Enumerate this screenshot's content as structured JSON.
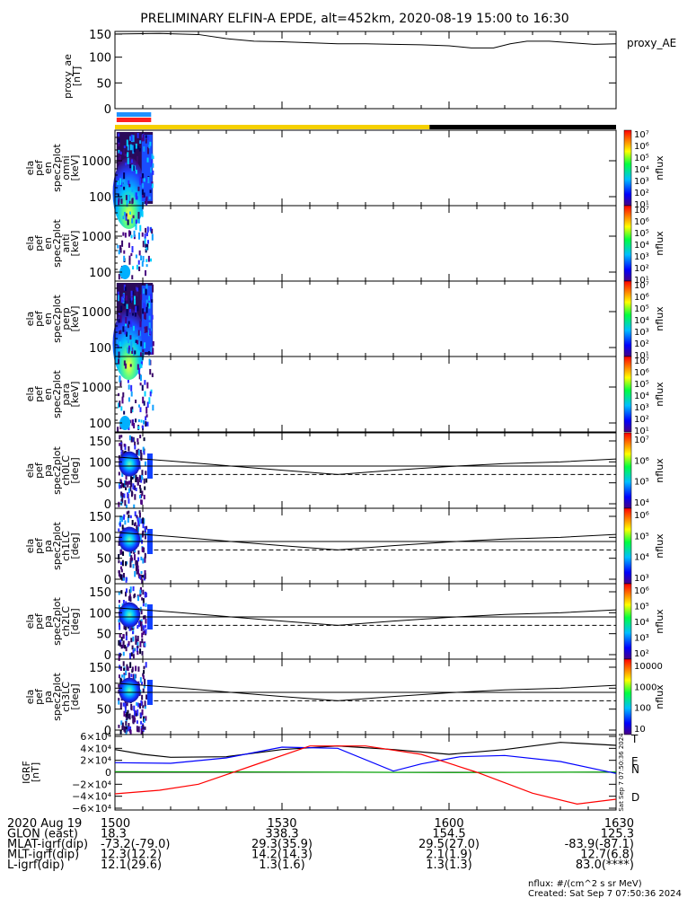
{
  "title": "PRELIMINARY ELFIN-A EPDE, alt=452km, 2020-08-19 15:00 to 16:30",
  "chart_data": {
    "type": "multi-panel",
    "x_range": [
      "15:00",
      "16:30"
    ],
    "x_ticks": [
      "1500",
      "1530",
      "1600",
      "1630"
    ],
    "ae_panel": {
      "ylabel": "proxy_ae [nT]",
      "yticks": [
        "150",
        "100",
        "50",
        "0"
      ],
      "ylim": [
        0,
        150
      ],
      "legend": "proxy_AE",
      "series": [
        {
          "t": 0,
          "v": 145
        },
        {
          "t": 8,
          "v": 146
        },
        {
          "t": 15,
          "v": 144
        },
        {
          "t": 20,
          "v": 136
        },
        {
          "t": 25,
          "v": 131
        },
        {
          "t": 30,
          "v": 130
        },
        {
          "t": 35,
          "v": 128
        },
        {
          "t": 40,
          "v": 126
        },
        {
          "t": 45,
          "v": 126
        },
        {
          "t": 50,
          "v": 125
        },
        {
          "t": 55,
          "v": 124
        },
        {
          "t": 60,
          "v": 122
        },
        {
          "t": 64,
          "v": 118
        },
        {
          "t": 68,
          "v": 118
        },
        {
          "t": 71,
          "v": 126
        },
        {
          "t": 74,
          "v": 131
        },
        {
          "t": 78,
          "v": 131
        },
        {
          "t": 82,
          "v": 128
        },
        {
          "t": 86,
          "v": 125
        },
        {
          "t": 90,
          "v": 126
        }
      ]
    },
    "status_bars": [
      {
        "color": "#1e90ff",
        "from": 0.3,
        "to": 6.5,
        "row": 0
      },
      {
        "color": "#ff2020",
        "from": 0.3,
        "to": 6.5,
        "row": 1
      },
      {
        "color": "#f5d000",
        "from": 0.0,
        "to": 56.5,
        "row": 2
      },
      {
        "color": "#000000",
        "from": 56.5,
        "to": 90.0,
        "row": 2
      }
    ],
    "energy_panels": [
      {
        "ylabel": [
          "ela",
          "pef",
          "en",
          "spec2plot",
          "omni",
          "[keV]"
        ],
        "yticks": [
          "1000",
          "100"
        ],
        "cb_label": "nflux",
        "cb_ticks": [
          "10⁷",
          "10⁶",
          "10⁵",
          "10⁴",
          "10³",
          "10²",
          "10¹"
        ],
        "density": "full"
      },
      {
        "ylabel": [
          "ela",
          "pef",
          "en",
          "spec2plot",
          "anti",
          "[keV]"
        ],
        "yticks": [
          "1000",
          "100"
        ],
        "cb_label": "nflux",
        "cb_ticks": [
          "10⁷",
          "10⁶",
          "10⁵",
          "10⁴",
          "10³",
          "10²",
          "10¹"
        ],
        "density": "sparse"
      },
      {
        "ylabel": [
          "ela",
          "pef",
          "en",
          "spec2plot",
          "perp",
          "[keV]"
        ],
        "yticks": [
          "1000",
          "100"
        ],
        "cb_label": "nflux",
        "cb_ticks": [
          "10⁷",
          "10⁶",
          "10⁵",
          "10⁴",
          "10³",
          "10²",
          "10¹"
        ],
        "density": "full"
      },
      {
        "ylabel": [
          "ela",
          "pef",
          "en",
          "spec2plot",
          "para",
          "[keV]"
        ],
        "yticks": [
          "1000",
          "100"
        ],
        "cb_label": "nflux",
        "cb_ticks": [
          "10⁷",
          "10⁶",
          "10⁵",
          "10⁴",
          "10³",
          "10²",
          "10¹"
        ],
        "density": "sparse"
      }
    ],
    "pa_panels": [
      {
        "ylabel": [
          "ela",
          "pef",
          "pa",
          "spec2plot",
          "ch0LC",
          "[deg]"
        ],
        "yticks": [
          "150",
          "100",
          "50",
          "0"
        ],
        "cb_label": "nflux",
        "cb_ticks": [
          "10⁷",
          "10⁶",
          "10⁵",
          "10⁴"
        ]
      },
      {
        "ylabel": [
          "ela",
          "pef",
          "pa",
          "spec2plot",
          "ch1LC",
          "[deg]"
        ],
        "yticks": [
          "150",
          "100",
          "50",
          "0"
        ],
        "cb_label": "nflux",
        "cb_ticks": [
          "10⁶",
          "10⁵",
          "10⁴",
          "10³"
        ]
      },
      {
        "ylabel": [
          "ela",
          "pef",
          "pa",
          "spec2plot",
          "ch2LC",
          "[deg]"
        ],
        "yticks": [
          "150",
          "100",
          "50",
          "0"
        ],
        "cb_label": "nflux",
        "cb_ticks": [
          "10⁶",
          "10⁵",
          "10⁴",
          "10³",
          "10²"
        ]
      },
      {
        "ylabel": [
          "ela",
          "pef",
          "pa",
          "spec2plot",
          "ch3LC",
          "[deg]"
        ],
        "yticks": [
          "150",
          "100",
          "50",
          "0"
        ],
        "cb_label": "nflux",
        "cb_ticks": [
          "10000",
          "1000",
          "100",
          "10"
        ]
      }
    ],
    "loss_cone": [
      {
        "t": 0,
        "v": 112
      },
      {
        "t": 10,
        "v": 102
      },
      {
        "t": 20,
        "v": 91
      },
      {
        "t": 30,
        "v": 80
      },
      {
        "t": 40,
        "v": 70
      },
      {
        "t": 50,
        "v": 80
      },
      {
        "t": 60,
        "v": 89
      },
      {
        "t": 70,
        "v": 96
      },
      {
        "t": 80,
        "v": 100
      },
      {
        "t": 90,
        "v": 107
      }
    ],
    "ref_line_solid": 90,
    "ref_line_dashed": 70,
    "b_panel": {
      "ylabel": "IGRF [nT]",
      "yticks": [
        "6×10⁴",
        "4×10⁴",
        "2×10⁴",
        "0",
        "−2×10⁴",
        "−4×10⁴",
        "−6×10⁴"
      ],
      "ylim": [
        -60000,
        60000
      ],
      "legend": [
        "T",
        "E",
        "N",
        "D"
      ],
      "series": [
        {
          "name": "T",
          "color": "#000000",
          "values": [
            [
              0,
              38000
            ],
            [
              5,
              30000
            ],
            [
              10,
              25000
            ],
            [
              20,
              26000
            ],
            [
              30,
              38000
            ],
            [
              40,
              44000
            ],
            [
              50,
              38000
            ],
            [
              60,
              30000
            ],
            [
              70,
              38000
            ],
            [
              80,
              50000
            ],
            [
              90,
              45000
            ]
          ]
        },
        {
          "name": "E",
          "color": "#00a000",
          "values": [
            [
              0,
              1000
            ],
            [
              30,
              500
            ],
            [
              60,
              -500
            ],
            [
              90,
              500
            ]
          ]
        },
        {
          "name": "N",
          "color": "#0000ff",
          "values": [
            [
              0,
              16000
            ],
            [
              10,
              15000
            ],
            [
              20,
              24000
            ],
            [
              30,
              42000
            ],
            [
              40,
              40000
            ],
            [
              50,
              2000
            ],
            [
              55,
              14000
            ],
            [
              62,
              26000
            ],
            [
              70,
              28000
            ],
            [
              80,
              18000
            ],
            [
              90,
              -2000
            ]
          ]
        },
        {
          "name": "D",
          "color": "#ff0000",
          "values": [
            [
              0,
              -36000
            ],
            [
              8,
              -30000
            ],
            [
              15,
              -20000
            ],
            [
              25,
              12000
            ],
            [
              35,
              44000
            ],
            [
              45,
              44000
            ],
            [
              55,
              30000
            ],
            [
              65,
              0
            ],
            [
              75,
              -35000
            ],
            [
              83,
              -53000
            ],
            [
              90,
              -45000
            ]
          ]
        }
      ]
    }
  },
  "ephemeris": {
    "rows": [
      {
        "label": "2020 Aug 19",
        "values": [
          "1500",
          "1530",
          "1600",
          "1630"
        ]
      },
      {
        "label": "GLON (east)",
        "values": [
          "18.3",
          "338.3",
          "154.5",
          "125.3"
        ]
      },
      {
        "label": "MLAT-igrf(dip)",
        "values": [
          "-73.2(-79.0)",
          "29.3(35.9)",
          "29.5(27.0)",
          "-83.9(-87.1)"
        ]
      },
      {
        "label": "MLT-igrf(dip)",
        "values": [
          "12.3(12.2)",
          "14.2(14.3)",
          "2.1(1.9)",
          "12.7(6.8)"
        ]
      },
      {
        "label": "L-igrf(dip)",
        "values": [
          "12.1(29.6)",
          "1.3(1.6)",
          "1.3(1.3)",
          "83.0(****)"
        ]
      }
    ]
  },
  "footer": {
    "units": "nflux: #/(cm^2 s sr MeV)",
    "created": "Created: Sat Sep  7 07:50:36 2024",
    "sidestamp": "Sat Sep  7 07:50:36 2024"
  }
}
